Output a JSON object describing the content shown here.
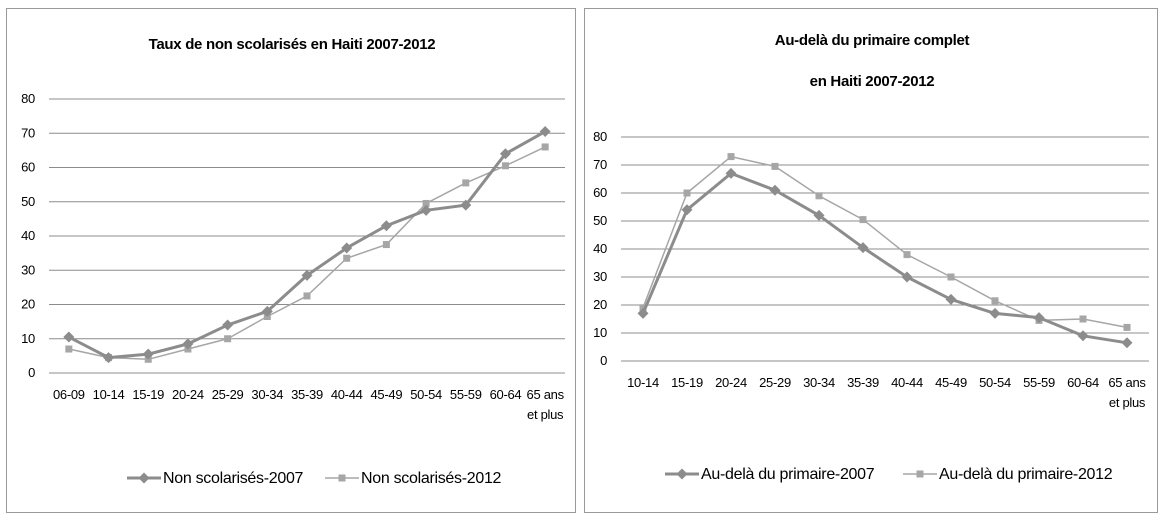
{
  "chart_data": [
    {
      "type": "line",
      "title": [
        "Taux de non scolarisés en Haiti 2007-2012"
      ],
      "categories": [
        [
          "06-09"
        ],
        [
          "10-14"
        ],
        [
          "15-19"
        ],
        [
          "20-24"
        ],
        [
          "25-29"
        ],
        [
          "30-34"
        ],
        [
          "35-39"
        ],
        [
          "40-44"
        ],
        [
          "45-49"
        ],
        [
          "50-54"
        ],
        [
          "55-59"
        ],
        [
          "60-64"
        ],
        [
          "65 ans",
          "et plus"
        ]
      ],
      "ylim": [
        0,
        80
      ],
      "yticks": [
        0,
        10,
        20,
        30,
        40,
        50,
        60,
        70,
        80
      ],
      "grid": true,
      "legend_position": "bottom",
      "series": [
        {
          "name": "Non scolarisés-2007",
          "marker": "diamond",
          "color": "#8c8c8c",
          "width": 3,
          "values": [
            10.5,
            4.5,
            5.5,
            8.5,
            14,
            18,
            28.5,
            36.5,
            43,
            47.5,
            49,
            64,
            70.5
          ]
        },
        {
          "name": "Non scolarisés-2012",
          "marker": "square",
          "color": "#a6a6a6",
          "width": 1.5,
          "values": [
            7,
            4.5,
            4,
            7,
            10,
            16.5,
            22.5,
            33.5,
            37.5,
            49.5,
            55.5,
            60.5,
            66
          ]
        }
      ]
    },
    {
      "type": "line",
      "title": [
        "Au-delà du primaire complet",
        "en Haiti 2007-2012"
      ],
      "categories": [
        [
          "10-14"
        ],
        [
          "15-19"
        ],
        [
          "20-24"
        ],
        [
          "25-29"
        ],
        [
          "30-34"
        ],
        [
          "35-39"
        ],
        [
          "40-44"
        ],
        [
          "45-49"
        ],
        [
          "50-54"
        ],
        [
          "55-59"
        ],
        [
          "60-64"
        ],
        [
          "65 ans",
          "et plus"
        ]
      ],
      "ylim": [
        0,
        80
      ],
      "yticks": [
        0,
        10,
        20,
        30,
        40,
        50,
        60,
        70,
        80
      ],
      "grid": true,
      "legend_position": "bottom",
      "series": [
        {
          "name": "Au-delà du primaire-2007",
          "marker": "diamond",
          "color": "#8c8c8c",
          "width": 3,
          "values": [
            17,
            54,
            67,
            61,
            52,
            40.5,
            30,
            22,
            17,
            15.5,
            9,
            6.5
          ]
        },
        {
          "name": "Au-delà du primaire-2012",
          "marker": "square",
          "color": "#a6a6a6",
          "width": 1.5,
          "values": [
            19,
            60,
            73,
            69.5,
            59,
            50.5,
            38,
            30,
            21.5,
            14.5,
            15,
            12
          ]
        }
      ]
    }
  ]
}
